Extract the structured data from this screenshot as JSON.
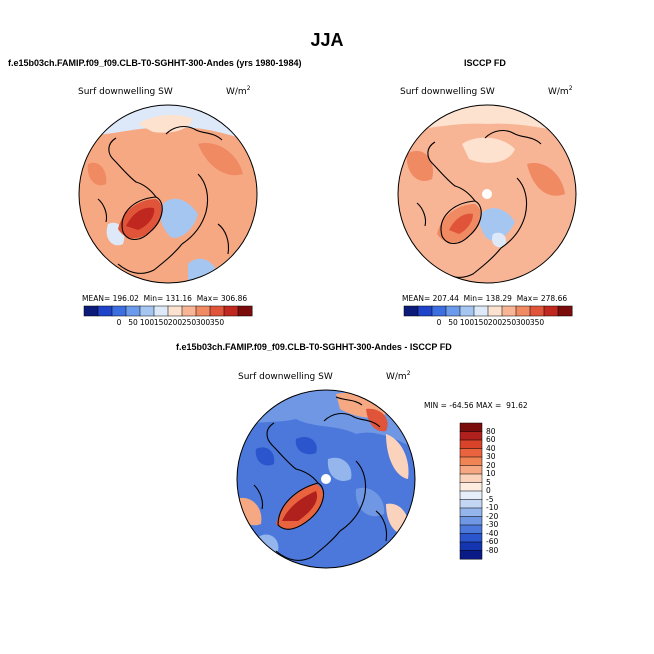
{
  "page_title": "JJA",
  "chart_data": [
    {
      "type": "heatmap",
      "panel": "model",
      "title": "f.e15b03ch.FAMIP.f09_f09.CLB-T0-SGHHT-300-Andes (yrs 1980-1984)",
      "variable": "Surf downwelling SW",
      "units": "W/m",
      "units_exp": "2",
      "projection": "polar-stereographic-north",
      "mean_label": "MEAN=",
      "mean": "196.02",
      "min_label": "Min=",
      "min": "131.16",
      "max_label": "Max=",
      "max": "306.86",
      "levels": [
        0,
        50,
        100,
        150,
        200,
        250,
        300,
        350
      ],
      "colors": [
        "#0c1a7a",
        "#1f44c9",
        "#3d6ee0",
        "#6d9bec",
        "#a6c6f2",
        "#dde9f8",
        "#fde2cf",
        "#f8b595",
        "#ef8a62",
        "#e0553a",
        "#c0281f",
        "#7a0c0c"
      ]
    },
    {
      "type": "heatmap",
      "panel": "obs",
      "title": "ISCCP FD",
      "variable": "Surf downwelling SW",
      "units": "W/m",
      "units_exp": "2",
      "projection": "polar-stereographic-north",
      "mean_label": "MEAN=",
      "mean": "207.44",
      "min_label": "Min=",
      "min": "138.29",
      "max_label": "Max=",
      "max": "278.66",
      "levels": [
        0,
        50,
        100,
        150,
        200,
        250,
        300,
        350
      ],
      "colors": [
        "#0c1a7a",
        "#1f44c9",
        "#3d6ee0",
        "#6d9bec",
        "#a6c6f2",
        "#dde9f8",
        "#fde2cf",
        "#f8b595",
        "#ef8a62",
        "#e0553a",
        "#c0281f",
        "#7a0c0c"
      ]
    },
    {
      "type": "heatmap",
      "panel": "difference",
      "title": "f.e15b03ch.FAMIP.f09_f09.CLB-T0-SGHHT-300-Andes - ISCCP FD",
      "variable": "Surf downwelling SW",
      "units": "W/m",
      "units_exp": "2",
      "projection": "polar-stereographic-north",
      "min_label": "MIN =",
      "min": "-64.56",
      "max_label": "MAX =",
      "max": "91.62",
      "levels": [
        80,
        60,
        40,
        30,
        20,
        10,
        5,
        0,
        -5,
        -10,
        -20,
        -30,
        -40,
        -60,
        -80
      ],
      "colors": [
        "#7a0c0c",
        "#b0201c",
        "#d8432a",
        "#e8633e",
        "#f08455",
        "#f6a882",
        "#fbd2bc",
        "#fdecdf",
        "#e6eefa",
        "#c3d6f4",
        "#95b6ec",
        "#6f97e4",
        "#4b78da",
        "#2a55cc",
        "#1534b0",
        "#0a1a86"
      ]
    }
  ]
}
